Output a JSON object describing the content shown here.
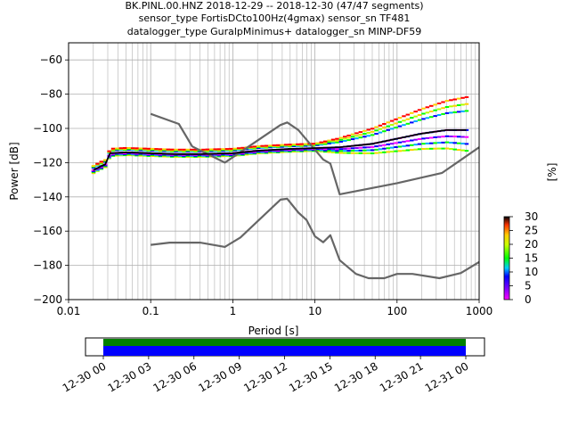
{
  "chart_data": [
    {
      "type": "line",
      "title_lines": [
        "BK.PINL.00.HNZ   2018-12-29 -- 2018-12-30  (47/47 segments)",
        "sensor_type FortisDCto100Hz(4gmax) sensor_sn TF481",
        "datalogger_type GuralpMinimus+ datalogger_sn MINP-DF59"
      ],
      "xlabel": "Period [s]",
      "ylabel": "Power [dB]",
      "x_scale": "log",
      "xlim": [
        0.01,
        1000
      ],
      "ylim": [
        -200,
        -50
      ],
      "x_ticks": [
        0.01,
        0.1,
        1,
        10,
        100,
        1000
      ],
      "x_tick_labels": [
        "0.01",
        "0.1",
        "1",
        "10",
        "100",
        "1000"
      ],
      "y_ticks": [
        -200,
        -180,
        -160,
        -140,
        -120,
        -100,
        -80,
        -60
      ],
      "y_tick_labels": [
        "−200",
        "−180",
        "−160",
        "−140",
        "−120",
        "−100",
        "−80",
        "−60"
      ],
      "grid": true,
      "series": [
        {
          "name": "",
          "color": "#666666",
          "x": [
            0.1,
            0.22,
            0.32,
            0.8,
            3.8,
            4.6,
            6.3,
            12.6,
            15.4,
            20,
            100,
            354,
            1000
          ],
          "y": [
            -91.5,
            -97.4,
            -110.5,
            -120,
            -98,
            -96.5,
            -101,
            -118.2,
            -120.5,
            -138.5,
            -132,
            -126,
            -111
          ]
        },
        {
          "name": "",
          "color": "#666666",
          "x": [
            0.1,
            0.17,
            0.4,
            0.8,
            1.24,
            3.8,
            4.6,
            6.3,
            7.9,
            10,
            12.6,
            15.4,
            20,
            31.6,
            45,
            70,
            100,
            154,
            328,
            600,
            1000
          ],
          "y": [
            -168,
            -166.7,
            -166.7,
            -169.2,
            -163.7,
            -141.6,
            -141.1,
            -149.2,
            -153.5,
            -163,
            -166.5,
            -162.4,
            -177,
            -185,
            -187.5,
            -187.5,
            -185,
            -185,
            -187.5,
            -184.5,
            -178
          ]
        },
        {
          "name": "",
          "color": "#000000",
          "x": [
            0.02,
            0.025,
            0.028,
            0.032,
            0.05,
            0.1,
            0.2,
            0.4,
            1,
            2,
            5,
            10,
            20,
            50,
            100,
            200,
            400,
            700
          ],
          "y": [
            -124.5,
            -122,
            -121,
            -114.5,
            -114,
            -114.5,
            -115,
            -115,
            -114.5,
            -113,
            -112,
            -111.5,
            -111,
            -109,
            -106,
            -103,
            -101,
            -101
          ]
        }
      ],
      "colorbar": {
        "label": "[%]",
        "range": [
          0,
          30
        ],
        "ticks": [
          0,
          5,
          10,
          15,
          20,
          25,
          30
        ]
      }
    },
    {
      "type": "timeline",
      "x_tick_labels": [
        "12-30 00",
        "12-30 03",
        "12-30 06",
        "12-30 09",
        "12-30 12",
        "12-30 15",
        "12-30 18",
        "12-30 21",
        "12-31 00"
      ],
      "bands": [
        {
          "color": "#008000",
          "start": "12-30 00",
          "end": "12-31 00"
        },
        {
          "color": "#0000ff",
          "start": "12-30 00",
          "end": "12-31 00"
        }
      ]
    }
  ]
}
